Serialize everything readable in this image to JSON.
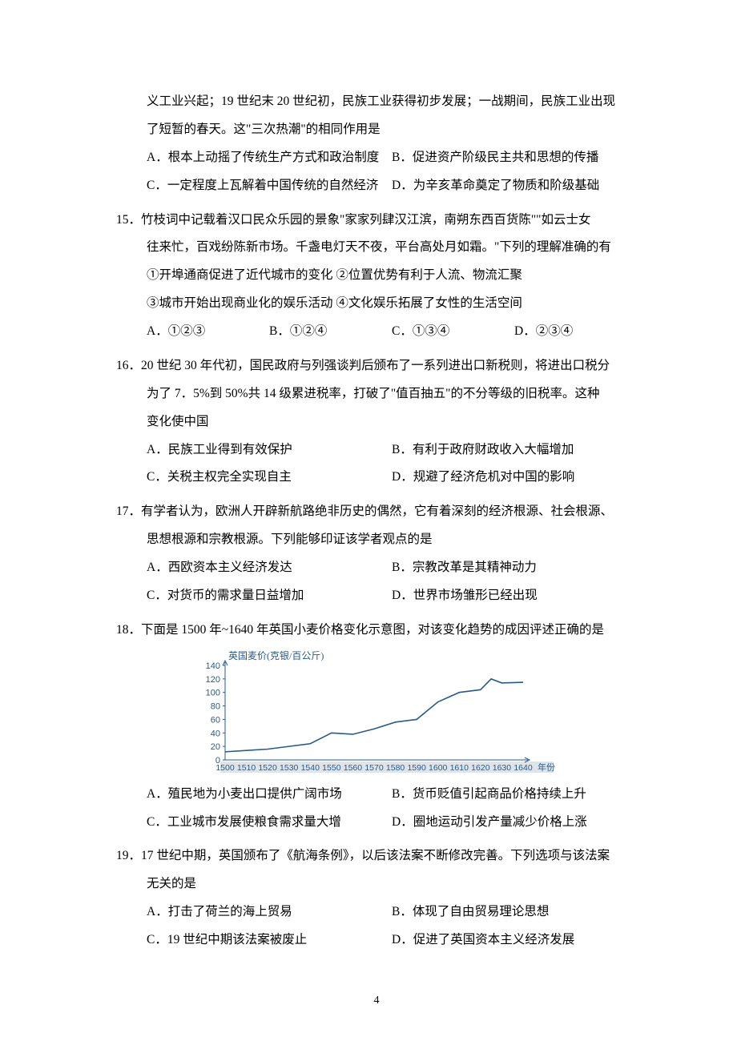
{
  "q14": {
    "cont_l1": "义工业兴起；19 世纪末 20 世纪初，民族工业获得初步发展；一战期间，民族工业出现",
    "cont_l2": "了短暂的春天。这\"三次热潮\"的相同作用是",
    "A": "A．根本上动摇了传统生产方式和政治制度",
    "B": "B．促进资产阶级民主共和思想的传播",
    "C": "C．一定程度上瓦解着中国传统的自然经济",
    "D": "D．为辛亥革命奠定了物质和阶级基础"
  },
  "q15": {
    "stem_l1": "15．竹枝词中记载着汉口民众乐园的景象\"家家列肆汉江滨，南朔东西百货陈\"\"如云士女",
    "stem_l2": "往来忙，百戏纷陈新市场。千盏电灯天不夜，平台高处月如霜。\"下列的理解准确的有",
    "s1": "①开埠通商促进了近代城市的变化  ②位置优势有利于人流、物流汇聚",
    "s2": "③城市开始出现商业化的娱乐活动  ④文化娱乐拓展了女性的生活空间",
    "A": "A．①②③",
    "B": "B．①②④",
    "C": "C．①③④",
    "D": "D．②③④"
  },
  "q16": {
    "stem_l1": "16．20 世纪 30 年代初，国民政府与列强谈判后颁布了一系列进出口新税则，将进出口税分",
    "stem_l2": "为了 7．5%到 50%共 14 级累进税率，打破了\"值百抽五\"的不分等级的旧税率。这种",
    "stem_l3": "变化使中国",
    "A": "A．民族工业得到有效保护",
    "B": "B．有利于政府财政收入大幅增加",
    "C": "C．关税主权完全实现自主",
    "D": "D．规避了经济危机对中国的影响"
  },
  "q17": {
    "stem_l1": "17．有学者认为，欧洲人开辟新航路绝非历史的偶然，它有着深刻的经济根源、社会根源、",
    "stem_l2": "思想根源和宗教根源。下列能够印证该学者观点的是",
    "A": "A．西欧资本主义经济发达",
    "B": "B．宗教改革是其精神动力",
    "C": "C．对货币的需求量日益增加",
    "D": "D．世界市场雏形已经出现"
  },
  "q18": {
    "stem_l1": "18．下面是 1500 年~1640 年英国小麦价格变化示意图，对该变化趋势的成因评述正确的是",
    "A": "A．殖民地为小麦出口提供广阔市场",
    "B": "B．货币贬值引起商品价格持续上升",
    "C": "C．工业城市发展使粮食需求量大增",
    "D": "D．圈地运动引发产量减少价格上涨",
    "chart": {
      "type": "line",
      "title": "英国麦价(克银/百公斤)",
      "title_fontsize": 12,
      "title_color": "#2a5a8a",
      "line_color": "#2a5a8a",
      "axis_color": "#2a5a8a",
      "text_color": "#2a5a8a",
      "background_color": "#ffffff",
      "axis_bg_band": "#dde4ea",
      "xlabel": "年份",
      "label_fontsize": 11,
      "xlim": [
        1500,
        1640
      ],
      "xtick_step": 10,
      "xticks": [
        1500,
        1510,
        1520,
        1530,
        1540,
        1550,
        1560,
        1570,
        1580,
        1590,
        1600,
        1610,
        1620,
        1630,
        1640
      ],
      "ylim": [
        0,
        140
      ],
      "ytick_step": 20,
      "yticks": [
        0,
        20,
        40,
        60,
        80,
        100,
        120,
        140
      ],
      "line_width": 1.6,
      "data_x": [
        1500,
        1510,
        1520,
        1530,
        1540,
        1550,
        1560,
        1570,
        1580,
        1590,
        1600,
        1610,
        1620,
        1625,
        1630,
        1640
      ],
      "data_y": [
        12,
        14,
        16,
        20,
        24,
        40,
        38,
        46,
        56,
        60,
        86,
        100,
        104,
        120,
        114,
        115
      ]
    }
  },
  "q19": {
    "stem_l1": "19．17 世纪中期，英国颁布了《航海条例》，以后该法案不断修改完善。下列选项与该法案",
    "stem_l2": "无关的是",
    "A": "A．打击了荷兰的海上贸易",
    "B": "B．体现了自由贸易理论思想",
    "C": "C．19 世纪中期该法案被废止",
    "D": "D．促进了英国资本主义经济发展"
  },
  "page_number": "4"
}
